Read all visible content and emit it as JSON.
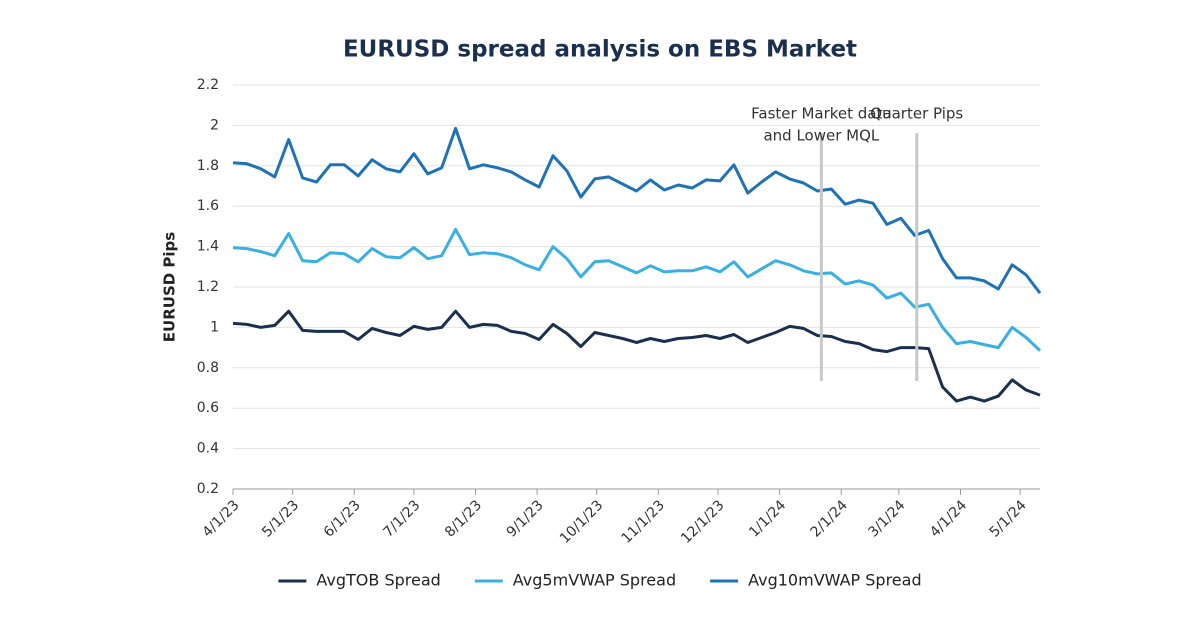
{
  "chart_data": {
    "type": "line",
    "title": "EURUSD spread analysis on EBS Market",
    "y_label": "EURUSD Pips",
    "x": [
      "4/1/23",
      "4/8/23",
      "4/15/23",
      "4/22/23",
      "4/29/23",
      "5/6/23",
      "5/13/23",
      "5/20/23",
      "5/27/23",
      "6/3/23",
      "6/10/23",
      "6/17/23",
      "6/24/23",
      "7/1/23",
      "7/8/23",
      "7/15/23",
      "7/22/23",
      "7/29/23",
      "8/5/23",
      "8/12/23",
      "8/19/23",
      "8/26/23",
      "9/2/23",
      "9/9/23",
      "9/16/23",
      "9/23/23",
      "9/30/23",
      "10/7/23",
      "10/14/23",
      "10/21/23",
      "10/28/23",
      "11/4/23",
      "11/11/23",
      "11/18/23",
      "11/25/23",
      "12/2/23",
      "12/9/23",
      "12/16/23",
      "12/23/23",
      "12/30/23",
      "1/6/24",
      "1/13/24",
      "1/20/24",
      "1/27/24",
      "2/3/24",
      "2/10/24",
      "2/17/24",
      "2/24/24",
      "3/2/24",
      "3/9/24",
      "3/16/24",
      "3/23/24",
      "3/30/24",
      "4/6/24",
      "4/13/24",
      "4/20/24",
      "4/27/24",
      "5/4/24",
      "5/11/24"
    ],
    "series": [
      {
        "name": "AvgTOB Spread",
        "color": "#1b2f4e",
        "values": [
          1.02,
          1.015,
          1.0,
          1.01,
          1.08,
          0.985,
          0.98,
          0.98,
          0.98,
          0.94,
          0.995,
          0.975,
          0.96,
          1.005,
          0.99,
          1.0,
          1.08,
          1.0,
          1.015,
          1.01,
          0.98,
          0.97,
          0.94,
          1.015,
          0.97,
          0.905,
          0.975,
          0.96,
          0.945,
          0.925,
          0.945,
          0.93,
          0.945,
          0.95,
          0.96,
          0.945,
          0.965,
          0.925,
          0.95,
          0.975,
          1.005,
          0.995,
          0.96,
          0.955,
          0.93,
          0.92,
          0.89,
          0.88,
          0.9,
          0.9,
          0.895,
          0.705,
          0.635,
          0.655,
          0.635,
          0.66,
          0.74,
          0.69,
          0.665
        ]
      },
      {
        "name": "Avg5mVWAP Spread",
        "color": "#3ab0e2",
        "values": [
          1.395,
          1.39,
          1.375,
          1.355,
          1.465,
          1.33,
          1.325,
          1.37,
          1.365,
          1.325,
          1.39,
          1.35,
          1.345,
          1.395,
          1.34,
          1.355,
          1.485,
          1.36,
          1.37,
          1.365,
          1.345,
          1.31,
          1.285,
          1.4,
          1.34,
          1.25,
          1.325,
          1.33,
          1.3,
          1.27,
          1.305,
          1.275,
          1.28,
          1.28,
          1.3,
          1.275,
          1.325,
          1.25,
          1.29,
          1.33,
          1.31,
          1.28,
          1.265,
          1.27,
          1.215,
          1.23,
          1.21,
          1.145,
          1.17,
          1.1,
          1.115,
          1.0,
          0.92,
          0.93,
          0.915,
          0.9,
          1.0,
          0.95,
          0.885
        ]
      },
      {
        "name": "Avg10mVWAP Spread",
        "color": "#1f72b5",
        "values": [
          1.815,
          1.81,
          1.785,
          1.745,
          1.93,
          1.74,
          1.72,
          1.805,
          1.805,
          1.75,
          1.83,
          1.785,
          1.77,
          1.86,
          1.76,
          1.79,
          1.985,
          1.785,
          1.805,
          1.79,
          1.77,
          1.73,
          1.695,
          1.85,
          1.775,
          1.645,
          1.735,
          1.745,
          1.71,
          1.675,
          1.73,
          1.68,
          1.705,
          1.69,
          1.73,
          1.725,
          1.805,
          1.665,
          1.72,
          1.77,
          1.735,
          1.715,
          1.675,
          1.685,
          1.61,
          1.63,
          1.615,
          1.51,
          1.54,
          1.455,
          1.48,
          1.34,
          1.245,
          1.245,
          1.23,
          1.19,
          1.31,
          1.26,
          1.17
        ]
      }
    ],
    "xlim": [
      "4/1/23",
      "5/11/24"
    ],
    "xticks": [
      "4/1/23",
      "5/1/23",
      "6/1/23",
      "7/1/23",
      "8/1/23",
      "9/1/23",
      "10/1/23",
      "11/1/23",
      "12/1/23",
      "1/1/24",
      "2/1/24",
      "3/1/24",
      "4/1/24",
      "5/1/24"
    ],
    "ylim": [
      0.2,
      2.2
    ],
    "yticks": [
      0.2,
      0.4,
      0.6,
      0.8,
      1,
      1.2,
      1.4,
      1.6,
      1.8,
      2,
      2.2
    ],
    "grid": true,
    "legend": "bottom",
    "annotations": [
      {
        "text": [
          "Faster Market data",
          "and Lower MQL"
        ],
        "x": "1/22/24"
      },
      {
        "text": [
          "Quarter Pips"
        ],
        "x": "3/10/24"
      }
    ]
  }
}
